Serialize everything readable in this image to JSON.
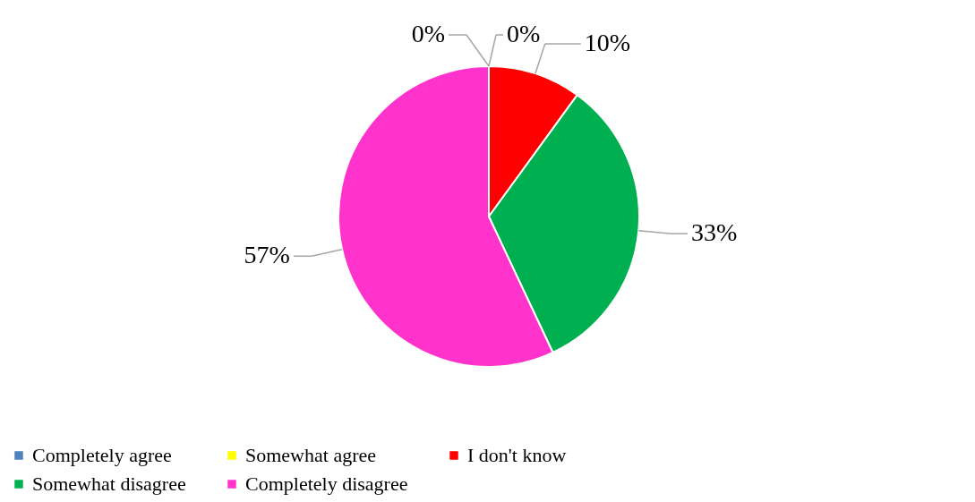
{
  "chart_data": {
    "type": "pie",
    "categories": [
      "Completely agree",
      "Somewhat agree",
      "I don't know",
      "Somewhat disagree",
      "Completely disagree"
    ],
    "values": [
      0,
      0,
      10,
      33,
      57
    ],
    "colors": [
      "#4f81bd",
      "#ffff00",
      "#ff0000",
      "#00b050",
      "#ff33cc"
    ],
    "value_labels": [
      "0%",
      "0%",
      "10%",
      "33%",
      "57%"
    ],
    "legend": "bottom"
  }
}
